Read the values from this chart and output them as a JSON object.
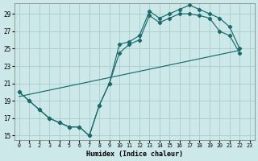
{
  "xlabel": "Humidex (Indice chaleur)",
  "background_color": "#cde8e8",
  "grid_color": "#a8cccc",
  "line_color": "#1a6b6b",
  "xlim": [
    -0.5,
    23.5
  ],
  "ylim": [
    14.5,
    30.2
  ],
  "xticks": [
    0,
    1,
    2,
    3,
    4,
    5,
    6,
    7,
    8,
    9,
    10,
    11,
    12,
    13,
    14,
    15,
    16,
    17,
    18,
    19,
    20,
    21,
    22,
    23
  ],
  "yticks": [
    15,
    17,
    19,
    21,
    23,
    25,
    27,
    29
  ],
  "line1_x": [
    0,
    1,
    2,
    3,
    4,
    5,
    6,
    7,
    8,
    9,
    10,
    11,
    12,
    13,
    14,
    15,
    16,
    17,
    18,
    19,
    20,
    21,
    22
  ],
  "line1_y": [
    20.0,
    19.0,
    18.0,
    17.0,
    16.5,
    16.0,
    16.0,
    15.0,
    18.5,
    21.0,
    25.5,
    25.8,
    26.5,
    29.3,
    28.5,
    29.0,
    29.5,
    30.0,
    29.5,
    29.0,
    28.5,
    27.5,
    25.0
  ],
  "line2_x": [
    0,
    1,
    2,
    3,
    4,
    5,
    6,
    7,
    8,
    9,
    10,
    11,
    12,
    13,
    14,
    15,
    16,
    17,
    18,
    19,
    20,
    21,
    22
  ],
  "line2_y": [
    20.0,
    19.0,
    18.0,
    17.0,
    16.5,
    16.0,
    16.0,
    15.0,
    18.5,
    21.0,
    24.5,
    25.5,
    26.0,
    28.8,
    28.0,
    28.5,
    29.0,
    29.0,
    28.8,
    28.5,
    27.0,
    26.5,
    24.5
  ],
  "line3_x": [
    0,
    22
  ],
  "line3_y": [
    19.5,
    24.8
  ]
}
